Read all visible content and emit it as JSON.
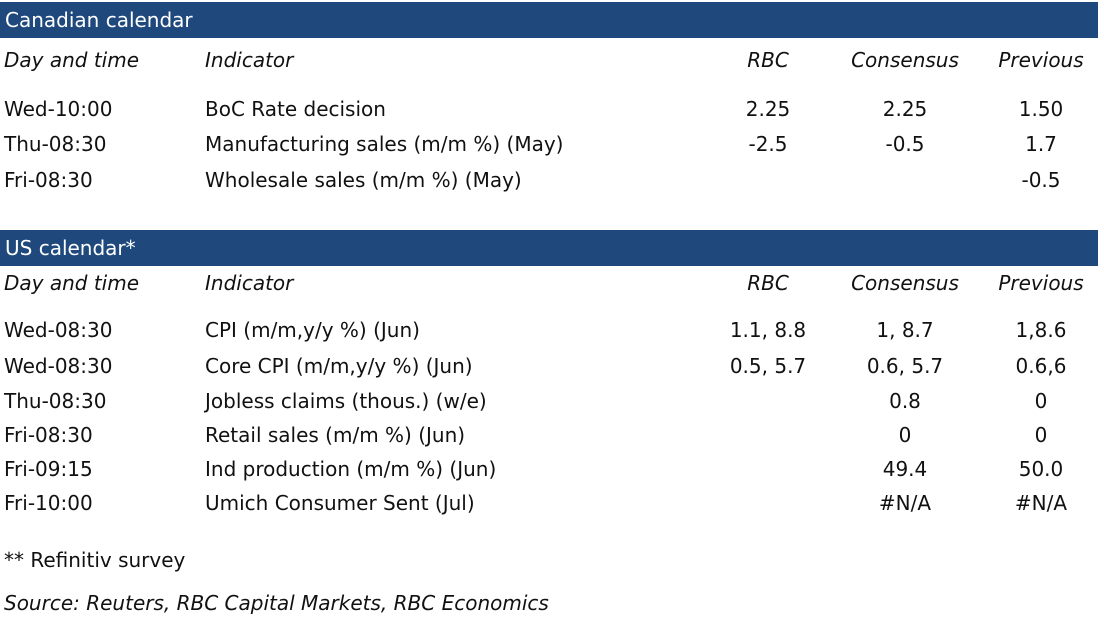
{
  "canadian": {
    "title": "Canadian calendar",
    "headers": {
      "day": "Day and time",
      "indicator": "Indicator",
      "rbc": "RBC",
      "consensus": "Consensus",
      "previous": "Previous"
    },
    "rows": [
      {
        "day": "Wed-10:00",
        "indicator": "BoC Rate decision",
        "rbc": "2.25",
        "consensus": "2.25",
        "previous": "1.50"
      },
      {
        "day": "Thu-08:30",
        "indicator": "Manufacturing sales (m/m %) (May)",
        "rbc": "-2.5",
        "consensus": "-0.5",
        "previous": "1.7"
      },
      {
        "day": "Fri-08:30",
        "indicator": "Wholesale sales (m/m %) (May)",
        "rbc": "",
        "consensus": "",
        "previous": "-0.5"
      }
    ]
  },
  "us": {
    "title": "US calendar*",
    "headers": {
      "day": "Day and time",
      "indicator": "Indicator",
      "rbc": "RBC",
      "consensus": "Consensus",
      "previous": "Previous"
    },
    "rows": [
      {
        "day": "Wed-08:30",
        "indicator": "CPI (m/m,y/y %) (Jun)",
        "rbc": "1.1, 8.8",
        "consensus": "1, 8.7",
        "previous": "1,8.6"
      },
      {
        "day": "Wed-08:30",
        "indicator": "Core CPI (m/m,y/y %) (Jun)",
        "rbc": "0.5, 5.7",
        "consensus": "0.6, 5.7",
        "previous": "0.6,6"
      },
      {
        "day": "Thu-08:30",
        "indicator": "Jobless claims (thous.) (w/e)",
        "rbc": "",
        "consensus": "0.8",
        "previous": "0"
      },
      {
        "day": "Fri-08:30",
        "indicator": "Retail sales (m/m %) (Jun)",
        "rbc": "",
        "consensus": "0",
        "previous": "0"
      },
      {
        "day": "Fri-09:15",
        "indicator": "Ind production (m/m %) (Jun)",
        "rbc": "",
        "consensus": "49.4",
        "previous": "50.0"
      },
      {
        "day": "Fri-10:00",
        "indicator": "Umich Consumer Sent (Jul)",
        "rbc": "",
        "consensus": "#N/A",
        "previous": "#N/A"
      }
    ]
  },
  "footnotes": {
    "survey": "** Refinitiv survey",
    "source": "Source: Reuters, RBC Capital Markets, RBC Economics"
  },
  "colors": {
    "header_bg": "#1f497d",
    "header_text": "#ffffff"
  }
}
